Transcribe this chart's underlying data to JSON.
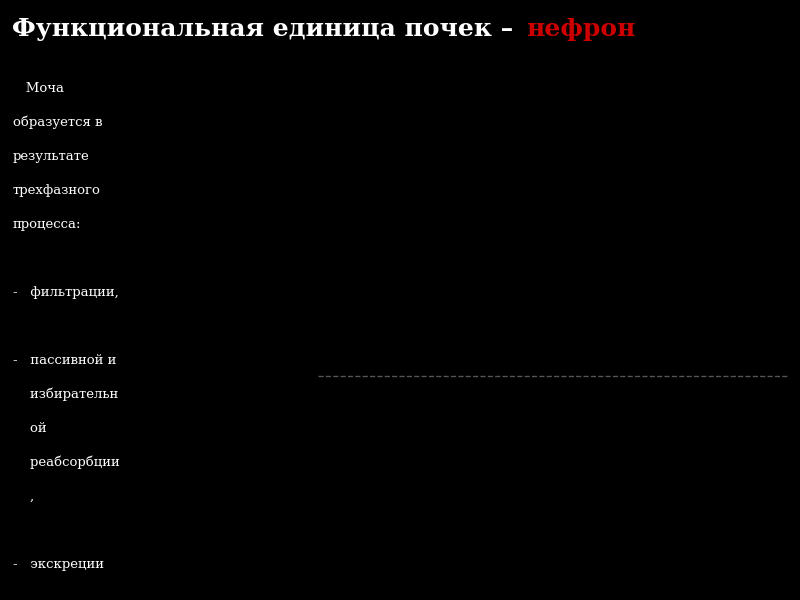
{
  "title_black": "Функциональная единица почек – ",
  "title_red": "нефрон",
  "bg_color": "#000000",
  "diagram_bg": "#ffffff",
  "left_text_color": "#ffffff",
  "left_text_line1": "   Моча",
  "left_text_line2": "образуется в",
  "left_text_line3": "результате",
  "left_text_line4": "трехфазного",
  "left_text_line5": "процесса:",
  "left_text_line6": "",
  "left_text_line7": "-   фильтрации,",
  "left_text_line8": "",
  "left_text_line9": "-   пассивной и",
  "left_text_line10": "    избирательн",
  "left_text_line11": "    ой",
  "left_text_line12": "    реабсорбции",
  "left_text_line13": "    ,",
  "left_text_line14": "",
  "left_text_line15": "-   экскреции",
  "title_fontsize": 18,
  "label_fontsize": 7.5
}
